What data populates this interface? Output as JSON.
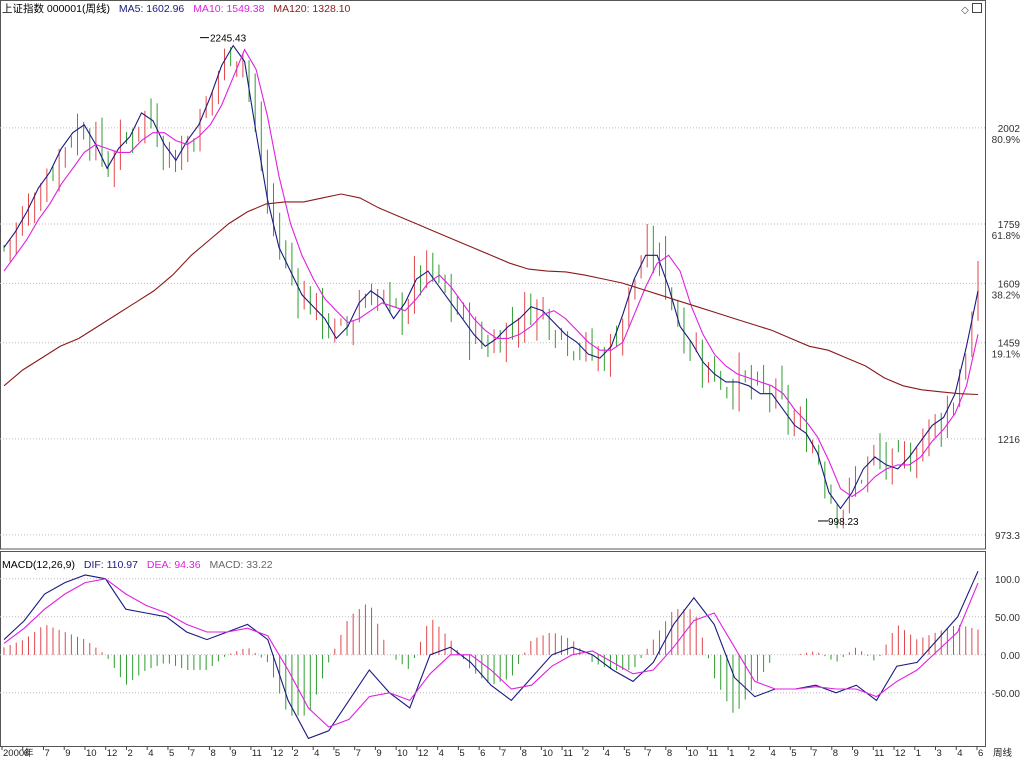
{
  "header": {
    "title": "上证指数 000001(周线)",
    "ma5": "MA5: 1602.96",
    "ma10": "MA10: 1549.38",
    "ma120": "MA120: 1328.10"
  },
  "macd_header": {
    "title": "MACD(12,26,9)",
    "dif": "DIF: 110.97",
    "dea": "DEA: 94.36",
    "macd": "MACD: 33.22"
  },
  "toolbar": {
    "diamond_icon": "diamond-icon",
    "window_icon": "window-icon"
  },
  "colors": {
    "up": "#e0474c",
    "down": "#2f9c2f",
    "ma5": "#1a1a80",
    "ma10": "#e020e0",
    "ma120": "#8b1a1a",
    "grid": "#bdbdbd",
    "dif": "#1a1a80",
    "dea": "#e020e0"
  },
  "chart_data": [
    {
      "type": "candlestick",
      "title": "上证指数 000001(周线)",
      "period": "weekly",
      "ylim": [
        973.3,
        2245.43
      ],
      "price_ticks": [
        "2002",
        "1759",
        "1609",
        "1459",
        "1216",
        "973.3"
      ],
      "percent_ticks": [
        "80.9%",
        "61.8%",
        "38.2%",
        "19.1%"
      ],
      "annotations": {
        "high": "2245.43",
        "low": "998.23"
      },
      "series": [
        {
          "name": "MA5",
          "value": 1602.96,
          "values": [
            1700,
            1740,
            1790,
            1850,
            1890,
            1950,
            1990,
            2010,
            1960,
            1900,
            1950,
            1980,
            2040,
            2020,
            1960,
            1920,
            1970,
            2010,
            2080,
            2160,
            2210,
            2170,
            1990,
            1820,
            1700,
            1640,
            1580,
            1550,
            1520,
            1470,
            1500,
            1560,
            1590,
            1570,
            1520,
            1560,
            1620,
            1640,
            1600,
            1560,
            1520,
            1480,
            1450,
            1470,
            1500,
            1520,
            1550,
            1540,
            1510,
            1480,
            1460,
            1430,
            1420,
            1450,
            1530,
            1620,
            1680,
            1680,
            1600,
            1500,
            1460,
            1410,
            1380,
            1360,
            1360,
            1350,
            1330,
            1330,
            1290,
            1250,
            1230,
            1180,
            1080,
            1040,
            1080,
            1140,
            1170,
            1150,
            1140,
            1170,
            1210,
            1250,
            1270,
            1330,
            1450,
            1590
          ]
        },
        {
          "name": "MA10",
          "value": 1549.38,
          "values": [
            1640,
            1680,
            1720,
            1770,
            1810,
            1860,
            1900,
            1940,
            1960,
            1950,
            1940,
            1940,
            1970,
            1990,
            1990,
            1970,
            1960,
            1980,
            2010,
            2060,
            2130,
            2200,
            2150,
            2030,
            1880,
            1760,
            1680,
            1620,
            1570,
            1540,
            1510,
            1520,
            1540,
            1560,
            1550,
            1540,
            1570,
            1610,
            1630,
            1600,
            1560,
            1520,
            1490,
            1470,
            1470,
            1480,
            1500,
            1530,
            1540,
            1520,
            1490,
            1460,
            1440,
            1440,
            1460,
            1530,
            1600,
            1660,
            1680,
            1640,
            1550,
            1480,
            1430,
            1400,
            1380,
            1370,
            1360,
            1350,
            1330,
            1290,
            1260,
            1220,
            1160,
            1090,
            1070,
            1090,
            1120,
            1140,
            1150,
            1150,
            1170,
            1210,
            1240,
            1280,
            1350,
            1480
          ]
        },
        {
          "name": "MA120",
          "value": 1328.1,
          "values": [
            1350,
            1390,
            1420,
            1450,
            1470,
            1500,
            1530,
            1560,
            1590,
            1630,
            1680,
            1720,
            1760,
            1790,
            1810,
            1815,
            1815,
            1825,
            1835,
            1825,
            1800,
            1780,
            1760,
            1740,
            1720,
            1700,
            1680,
            1660,
            1645,
            1640,
            1638,
            1630,
            1620,
            1610,
            1595,
            1580,
            1565,
            1550,
            1535,
            1520,
            1505,
            1490,
            1470,
            1450,
            1440,
            1420,
            1400,
            1370,
            1350,
            1340,
            1335,
            1330,
            1328
          ]
        }
      ]
    },
    {
      "type": "line+bar",
      "title": "MACD(12,26,9)",
      "ylim": [
        -120,
        130
      ],
      "y_ticks": [
        100,
        50,
        0,
        -50
      ],
      "y_tick_labels": [
        "100.0",
        "50.00",
        "0.00",
        "-50.00"
      ],
      "x_tick_labels": [
        "2000年",
        "6",
        "7",
        "9",
        "10",
        "12",
        "2",
        "4",
        "5",
        "7",
        "8",
        "9",
        "11",
        "12",
        "2",
        "4",
        "5",
        "7",
        "9",
        "10",
        "12",
        "4",
        "5",
        "6",
        "7",
        "8",
        "10",
        "11",
        "2",
        "4",
        "5",
        "7",
        "8",
        "10",
        "11",
        "1",
        "2",
        "4",
        "5",
        "7",
        "8",
        "9",
        "11",
        "12",
        "1",
        "3",
        "4",
        "6",
        "周线"
      ],
      "series": [
        {
          "name": "DIF",
          "value": 110.97,
          "values": [
            20,
            45,
            80,
            95,
            105,
            100,
            60,
            55,
            50,
            30,
            20,
            30,
            40,
            20,
            -60,
            -110,
            -100,
            -60,
            -20,
            -50,
            -70,
            0,
            10,
            -10,
            -40,
            -60,
            -30,
            0,
            10,
            0,
            -20,
            -35,
            -10,
            40,
            75,
            40,
            -30,
            -55,
            -45,
            -45,
            -40,
            -50,
            -40,
            -60,
            -15,
            -10,
            20,
            50,
            110
          ]
        },
        {
          "name": "DEA",
          "value": 94.36,
          "values": [
            15,
            35,
            60,
            80,
            95,
            100,
            80,
            65,
            55,
            40,
            30,
            30,
            35,
            25,
            -20,
            -70,
            -95,
            -85,
            -55,
            -50,
            -60,
            -25,
            0,
            0,
            -20,
            -45,
            -40,
            -15,
            0,
            5,
            -10,
            -25,
            -20,
            10,
            45,
            55,
            10,
            -35,
            -45,
            -45,
            -42,
            -45,
            -45,
            -55,
            -35,
            -20,
            5,
            30,
            94.36
          ]
        },
        {
          "name": "MACD",
          "value": 33.22,
          "values": [
            10,
            20,
            40,
            30,
            20,
            0,
            -40,
            -20,
            -10,
            -20,
            -20,
            0,
            10,
            -10,
            -80,
            -80,
            -10,
            50,
            70,
            0,
            -20,
            50,
            20,
            -20,
            -40,
            -30,
            20,
            30,
            20,
            -10,
            -20,
            -20,
            20,
            60,
            60,
            -30,
            -80,
            -40,
            0,
            0,
            5,
            -10,
            10,
            -10,
            40,
            20,
            30,
            40,
            33.22
          ]
        }
      ]
    }
  ]
}
